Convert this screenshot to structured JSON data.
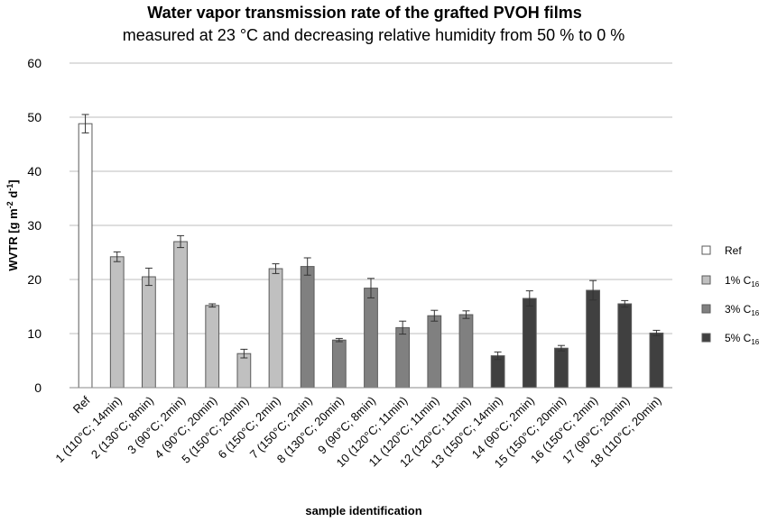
{
  "chart_data": {
    "type": "bar",
    "title": "Water vapor transmission rate of the grafted PVOH films",
    "subtitle": "measured at 23 °C and decreasing relative humidity from 50 % to 0 %",
    "xlabel": "sample identification",
    "ylabel": {
      "main": "WVTR [g m",
      "sup1": "-2",
      "mid": " d",
      "sup2": "-1",
      "end": "]"
    },
    "ylim": [
      0,
      60
    ],
    "yticks": [
      0,
      10,
      20,
      30,
      40,
      50,
      60
    ],
    "grid": true,
    "legend_position": "right",
    "categories": [
      "Ref",
      "1 (110°C; 14min)",
      "2 (130°C; 8min)",
      "3 (90°C; 2min)",
      "4 (90°C; 20min)",
      "5 (150°C; 20min)",
      "6 (150°C; 2min)",
      "7 (150°C; 2min)",
      "8 (130°C; 20min)",
      "9 (90°C; 8min)",
      "10 (120°C; 11min)",
      "11 (120°C; 11min)",
      "12 (120°C; 11min)",
      "13 (150°C; 14min)",
      "14 (90°C; 2min)",
      "15 (150°C; 20min)",
      "16 (150°C; 2min)",
      "17 (90°C; 20min)",
      "18 (110°C; 20min)"
    ],
    "values": [
      48.8,
      24.2,
      20.5,
      27.0,
      15.2,
      6.3,
      22.0,
      22.4,
      8.8,
      18.4,
      11.1,
      13.3,
      13.5,
      5.9,
      16.5,
      7.3,
      18.0,
      15.5,
      10.1
    ],
    "errors": [
      1.7,
      0.9,
      1.6,
      1.1,
      0.3,
      0.8,
      0.9,
      1.6,
      0.3,
      1.8,
      1.2,
      1.0,
      0.7,
      0.7,
      1.4,
      0.5,
      1.8,
      0.6,
      0.5
    ],
    "group": [
      0,
      1,
      1,
      1,
      1,
      1,
      1,
      2,
      2,
      2,
      2,
      2,
      2,
      3,
      3,
      3,
      3,
      3,
      3
    ],
    "series": [
      {
        "name": "Ref",
        "sub": "",
        "color": "#ffffff"
      },
      {
        "name": "1% C",
        "sub": "16",
        "color": "#c0c0c0"
      },
      {
        "name": "3% C",
        "sub": "16",
        "color": "#808080"
      },
      {
        "name": "5% C",
        "sub": "16",
        "color": "#404040"
      }
    ]
  }
}
